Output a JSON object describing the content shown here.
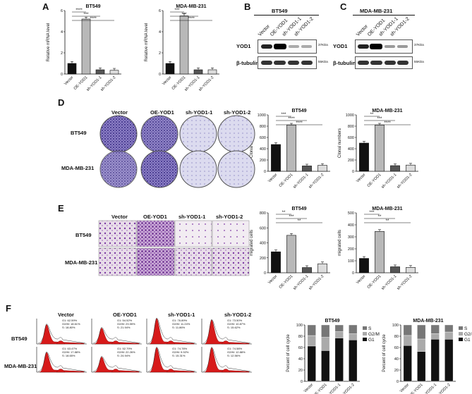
{
  "panel_labels": {
    "A": "A",
    "B": "B",
    "C": "C",
    "D": "D",
    "E": "E",
    "F": "F"
  },
  "groups": [
    "Vector",
    "OE-YOD1",
    "sh-YOD1-1",
    "sh-YOD1-2"
  ],
  "cell_lines": {
    "bt549": "BT549",
    "mda": "MDA-MB-231"
  },
  "western": {
    "yod1": "YOD1",
    "tubulin": "β-tubulin",
    "kda_yod1": "37KDa",
    "kda_tub": "55KDa"
  },
  "colors": {
    "black": "#111111",
    "dark": "#555555",
    "light": "#b8b8b8",
    "lighter": "#dcdcdc",
    "red": "#d71a1a",
    "purple": "#5b4aa6"
  },
  "chart_data": [
    {
      "type": "bar",
      "title": "BT549",
      "ylabel": "Relative mRNA level",
      "categories": [
        "Vector",
        "OE-YOD1",
        "sh-YOD1-1",
        "sh-YOD1-2"
      ],
      "values": [
        1,
        5.2,
        0.4,
        0.35
      ],
      "ylim": [
        0,
        6
      ],
      "yticks": [
        0,
        2,
        4,
        6
      ],
      "significance": [
        "****",
        "***",
        "****"
      ]
    },
    {
      "type": "bar",
      "title": "MDA-MB-231",
      "ylabel": "Relative mRNA level",
      "categories": [
        "Vector",
        "OE-YOD1",
        "sh-YOD1-1",
        "sh-YOD1-2"
      ],
      "values": [
        1,
        5.5,
        0.4,
        0.4
      ],
      "ylim": [
        0,
        6
      ],
      "yticks": [
        0,
        2,
        4,
        6
      ],
      "significance": [
        "***",
        "***",
        "****"
      ]
    },
    {
      "type": "bar",
      "title": "BT549",
      "ylabel": "Clonal numbers",
      "categories": [
        "Vector",
        "OE-YOD1",
        "sh-YOD1-1",
        "sh-YOD1-2"
      ],
      "values": [
        475,
        820,
        95,
        105
      ],
      "ylim": [
        0,
        1000
      ],
      "yticks": [
        0,
        200,
        400,
        600,
        800,
        1000
      ],
      "significance": [
        "***",
        "****",
        "****"
      ]
    },
    {
      "type": "bar",
      "title": "MDA-MB-231",
      "ylabel": "Clonal numbers",
      "categories": [
        "Vector",
        "OE-YOD1",
        "sh-YOD1-1",
        "sh-YOD1-2"
      ],
      "values": [
        500,
        820,
        100,
        110
      ],
      "ylim": [
        0,
        1000
      ],
      "yticks": [
        0,
        200,
        400,
        600,
        800,
        1000
      ],
      "significance": [
        "**",
        "***",
        "****"
      ]
    },
    {
      "type": "bar",
      "title": "BT549",
      "ylabel": "migrated cells",
      "categories": [
        "Vector",
        "OE-YOD1",
        "sh-YOD1-1",
        "sh-YOD1-2"
      ],
      "values": [
        280,
        500,
        70,
        120
      ],
      "ylim": [
        0,
        800
      ],
      "yticks": [
        0,
        200,
        400,
        600,
        800
      ],
      "significance": [
        "**",
        "***",
        "**"
      ]
    },
    {
      "type": "bar",
      "title": "MDA-MB-231",
      "ylabel": "migrated cells",
      "categories": [
        "Vector",
        "OE-YOD1",
        "sh-YOD1-1",
        "sh-YOD1-2"
      ],
      "values": [
        120,
        345,
        50,
        45
      ],
      "ylim": [
        0,
        500
      ],
      "yticks": [
        0,
        100,
        200,
        300,
        400,
        500
      ],
      "significance": [
        "***",
        "**",
        "**"
      ]
    },
    {
      "type": "bar",
      "title": "BT549",
      "ylabel": "Percent of cell cycle",
      "categories": [
        "Vector",
        "OE-YOD1",
        "sh-YOD1-1",
        "sh-YOD1-2"
      ],
      "stacked": true,
      "ylim": [
        0,
        100
      ],
      "yticks": [
        0,
        20,
        40,
        60,
        80,
        100
      ],
      "series": [
        {
          "name": "G1",
          "values": [
            62.59,
            54.52,
            76.89,
            73.5
          ]
        },
        {
          "name": "G2/M",
          "values": [
            18.61,
            23.55,
            11.24,
            10.87
          ]
        },
        {
          "name": "S",
          "values": [
            18.8,
            21.94,
            11.86,
            15.62
          ]
        }
      ]
    },
    {
      "type": "bar",
      "title": "MDA-MB-231",
      "ylabel": "Percent of cell cycle",
      "categories": [
        "Vector",
        "OE-YOD1",
        "sh-YOD1-1",
        "sh-YOD1-2"
      ],
      "stacked": true,
      "ylim": [
        0,
        100
      ],
      "yticks": [
        0,
        20,
        40,
        60,
        80,
        100
      ],
      "series": [
        {
          "name": "G1",
          "values": [
            63.47,
            52.79,
            74.78,
            74.58
          ]
        },
        {
          "name": "G2/M",
          "values": [
            17.88,
            22.26,
            9.92,
            12.88
          ]
        },
        {
          "name": "S",
          "values": [
            18.65,
            24.94,
            15.31,
            12.56
          ]
        }
      ]
    }
  ],
  "flow": {
    "row_labels": [
      "BT549",
      "MDA-MB-231"
    ],
    "stats": [
      [
        "G1: 62.59%",
        "G2/M: 18.61%",
        "S: 18.80%"
      ],
      [
        "G1: 54.52%",
        "G2/M: 23.55%",
        "S: 21.94%"
      ],
      [
        "G1: 76.89%",
        "G2/M: 11.24%",
        "S: 11.86%"
      ],
      [
        "G1: 73.50%",
        "G2/M: 10.87%",
        "S: 15.62%"
      ],
      [
        "G1: 63.47%",
        "G2/M: 17.88%",
        "S: 18.65%"
      ],
      [
        "G1: 52.79%",
        "G2/M: 22.26%",
        "S: 24.94%"
      ],
      [
        "G1: 74.78%",
        "G2/M: 9.92%",
        "S: 15.31%"
      ],
      [
        "G1: 74.58%",
        "G2/M: 12.88%",
        "S: 12.56%"
      ]
    ]
  }
}
